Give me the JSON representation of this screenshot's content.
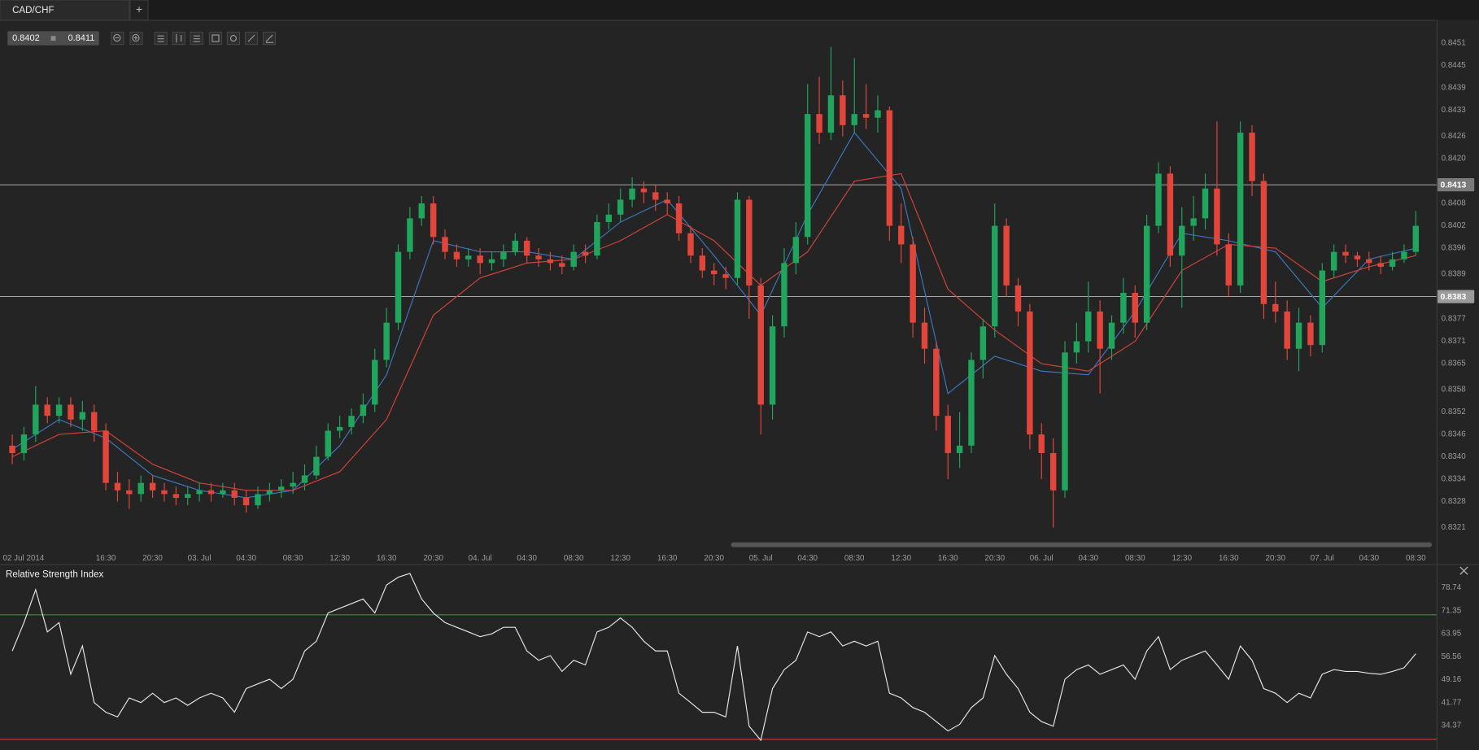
{
  "tab": {
    "title": "CAD/CHF",
    "add": "+"
  },
  "quote": {
    "bid": 0.8402,
    "ask": 0.8411
  },
  "chart_data": [
    {
      "type": "candlestick",
      "categories": [
        "02 Jul 2014",
        null,
        null,
        null,
        null,
        null,
        null,
        null,
        "16:30",
        null,
        null,
        null,
        "20:30",
        null,
        null,
        null,
        "03. Jul",
        null,
        null,
        null,
        "04:30",
        null,
        null,
        null,
        "08:30",
        null,
        null,
        null,
        "12:30",
        null,
        null,
        null,
        "16:30",
        null,
        null,
        null,
        "20:30",
        null,
        null,
        null,
        "04. Jul",
        null,
        null,
        null,
        "04:30",
        null,
        null,
        null,
        "08:30",
        null,
        null,
        null,
        "12:30",
        null,
        null,
        null,
        "16:30",
        null,
        null,
        null,
        "20:30",
        null,
        null,
        null,
        "05. Jul",
        null,
        null,
        null,
        "04:30",
        null,
        null,
        null,
        "08:30",
        null,
        null,
        null,
        "12:30",
        null,
        null,
        null,
        "16:30",
        null,
        null,
        null,
        "20:30",
        null,
        null,
        null,
        "06. Jul",
        null,
        null,
        null,
        "04:30",
        null,
        null,
        null,
        "08:30",
        null,
        null,
        null,
        "12:30",
        null,
        null,
        null,
        "16:30",
        null,
        null,
        null,
        "20:30",
        null,
        null,
        null,
        "07. Jul",
        null,
        null,
        null,
        "04:30",
        null,
        null,
        null,
        "08:30"
      ],
      "open": [
        0.8343,
        0.8341,
        0.8346,
        0.8354,
        0.8351,
        0.8354,
        0.835,
        0.8352,
        0.8347,
        0.8333,
        0.8331,
        0.833,
        0.8333,
        0.8331,
        0.833,
        0.8329,
        0.833,
        0.8331,
        0.833,
        0.8331,
        0.8329,
        0.8327,
        0.833,
        0.8331,
        0.8332,
        0.8333,
        0.8335,
        0.834,
        0.8347,
        0.8348,
        0.8351,
        0.8354,
        0.8366,
        0.8376,
        0.8395,
        0.8404,
        0.8408,
        0.8399,
        0.8395,
        0.8393,
        0.8394,
        0.8392,
        0.8393,
        0.8395,
        0.8398,
        0.8394,
        0.8393,
        0.8392,
        0.8391,
        0.8395,
        0.8394,
        0.8403,
        0.8405,
        0.8409,
        0.8412,
        0.8411,
        0.8409,
        0.8408,
        0.84,
        0.8394,
        0.839,
        0.8389,
        0.8388,
        0.8409,
        0.8386,
        0.8354,
        0.8375,
        0.8392,
        0.8399,
        0.8432,
        0.8427,
        0.8437,
        0.8429,
        0.8432,
        0.8431,
        0.8433,
        0.8402,
        0.8397,
        0.8376,
        0.8369,
        0.8351,
        0.8341,
        0.8343,
        0.8366,
        0.8375,
        0.8402,
        0.8386,
        0.8379,
        0.8346,
        0.8341,
        0.8331,
        0.8368,
        0.8371,
        0.8379,
        0.8369,
        0.8376,
        0.8384,
        0.8376,
        0.8402,
        0.8416,
        0.8394,
        0.8402,
        0.8404,
        0.8412,
        0.8397,
        0.8386,
        0.8427,
        0.8414,
        0.8381,
        0.8379,
        0.8369,
        0.8376,
        0.837,
        0.839,
        0.8395,
        0.8394,
        0.8393,
        0.8392,
        0.8391,
        0.8393,
        0.8395
      ],
      "high": [
        0.8346,
        0.8348,
        0.8359,
        0.8356,
        0.8356,
        0.8356,
        0.8355,
        0.8354,
        0.8349,
        0.8336,
        0.8334,
        0.8335,
        0.8335,
        0.8333,
        0.8332,
        0.8332,
        0.8333,
        0.8333,
        0.8333,
        0.8333,
        0.8331,
        0.8332,
        0.8333,
        0.8334,
        0.8336,
        0.8338,
        0.8343,
        0.8349,
        0.8351,
        0.8353,
        0.8357,
        0.8369,
        0.838,
        0.8397,
        0.8407,
        0.841,
        0.841,
        0.8401,
        0.8397,
        0.8396,
        0.8396,
        0.8395,
        0.8397,
        0.84,
        0.8399,
        0.8396,
        0.8395,
        0.8394,
        0.8397,
        0.8397,
        0.8405,
        0.8408,
        0.8412,
        0.8415,
        0.8414,
        0.8413,
        0.8411,
        0.841,
        0.8402,
        0.8396,
        0.8392,
        0.8391,
        0.8411,
        0.841,
        0.8388,
        0.8378,
        0.8396,
        0.8403,
        0.844,
        0.8442,
        0.845,
        0.8441,
        0.8447,
        0.844,
        0.8437,
        0.8434,
        0.8408,
        0.8399,
        0.838,
        0.8371,
        0.8354,
        0.8352,
        0.8368,
        0.8377,
        0.8408,
        0.8404,
        0.8388,
        0.8381,
        0.8349,
        0.8345,
        0.8371,
        0.8376,
        0.8387,
        0.8382,
        0.8378,
        0.8388,
        0.8386,
        0.8405,
        0.8419,
        0.8418,
        0.8407,
        0.841,
        0.8416,
        0.843,
        0.84,
        0.843,
        0.8429,
        0.8416,
        0.8387,
        0.8382,
        0.838,
        0.8378,
        0.8392,
        0.8397,
        0.8397,
        0.8395,
        0.8395,
        0.8394,
        0.8395,
        0.8397,
        0.8406
      ],
      "low": [
        0.8338,
        0.8339,
        0.8344,
        0.8349,
        0.8349,
        0.8348,
        0.8347,
        0.8344,
        0.8331,
        0.8328,
        0.8326,
        0.8328,
        0.8329,
        0.8328,
        0.8327,
        0.8327,
        0.8328,
        0.8328,
        0.8329,
        0.8327,
        0.8325,
        0.8326,
        0.8328,
        0.8329,
        0.833,
        0.8331,
        0.8334,
        0.8339,
        0.8345,
        0.8346,
        0.8349,
        0.8352,
        0.8364,
        0.8374,
        0.8393,
        0.8402,
        0.8397,
        0.8393,
        0.8391,
        0.8391,
        0.8389,
        0.839,
        0.8391,
        0.8394,
        0.8392,
        0.8391,
        0.839,
        0.8389,
        0.839,
        0.8392,
        0.8393,
        0.8401,
        0.8403,
        0.8407,
        0.8408,
        0.8406,
        0.8405,
        0.8398,
        0.8392,
        0.8388,
        0.8386,
        0.8385,
        0.8386,
        0.8377,
        0.8346,
        0.835,
        0.8372,
        0.8389,
        0.8397,
        0.8424,
        0.8425,
        0.8426,
        0.8427,
        0.8428,
        0.8427,
        0.8398,
        0.8392,
        0.8372,
        0.8365,
        0.8347,
        0.8334,
        0.8337,
        0.8341,
        0.8361,
        0.8372,
        0.8383,
        0.8375,
        0.8342,
        0.8334,
        0.8321,
        0.8329,
        0.8365,
        0.8368,
        0.8357,
        0.8366,
        0.8373,
        0.8372,
        0.8374,
        0.84,
        0.8391,
        0.838,
        0.8398,
        0.8401,
        0.8394,
        0.8383,
        0.8384,
        0.841,
        0.8377,
        0.8376,
        0.8366,
        0.8363,
        0.8367,
        0.8368,
        0.8388,
        0.8392,
        0.8391,
        0.839,
        0.8389,
        0.839,
        0.8392,
        0.8394
      ],
      "close": [
        0.8341,
        0.8346,
        0.8354,
        0.8351,
        0.8354,
        0.835,
        0.8352,
        0.8347,
        0.8333,
        0.8331,
        0.833,
        0.8333,
        0.8331,
        0.833,
        0.8329,
        0.833,
        0.8331,
        0.833,
        0.8331,
        0.8329,
        0.8327,
        0.833,
        0.8331,
        0.8332,
        0.8333,
        0.8335,
        0.834,
        0.8347,
        0.8348,
        0.8351,
        0.8354,
        0.8366,
        0.8376,
        0.8395,
        0.8404,
        0.8408,
        0.8399,
        0.8395,
        0.8393,
        0.8394,
        0.8392,
        0.8393,
        0.8395,
        0.8398,
        0.8394,
        0.8393,
        0.8392,
        0.8391,
        0.8395,
        0.8394,
        0.8403,
        0.8405,
        0.8409,
        0.8412,
        0.8411,
        0.8409,
        0.8408,
        0.84,
        0.8394,
        0.839,
        0.8389,
        0.8388,
        0.8409,
        0.8386,
        0.8354,
        0.8375,
        0.8392,
        0.8399,
        0.8432,
        0.8427,
        0.8437,
        0.8429,
        0.8432,
        0.8431,
        0.8433,
        0.8402,
        0.8397,
        0.8376,
        0.8369,
        0.8351,
        0.8341,
        0.8343,
        0.8366,
        0.8375,
        0.8402,
        0.8386,
        0.8379,
        0.8346,
        0.8341,
        0.8331,
        0.8368,
        0.8371,
        0.8379,
        0.8369,
        0.8376,
        0.8384,
        0.8376,
        0.8402,
        0.8416,
        0.8394,
        0.8402,
        0.8404,
        0.8412,
        0.8397,
        0.8386,
        0.8427,
        0.8414,
        0.8381,
        0.8379,
        0.8369,
        0.8376,
        0.837,
        0.839,
        0.8395,
        0.8394,
        0.8393,
        0.8392,
        0.8391,
        0.8393,
        0.8395,
        0.8402
      ],
      "up_color": "#1fa55c",
      "down_color": "#e2463b",
      "overlays": [
        {
          "color": "#3a78c0",
          "x": [
            0,
            4,
            8,
            12,
            16,
            20,
            24,
            28,
            32,
            36,
            40,
            44,
            48,
            52,
            56,
            60,
            64,
            68,
            72,
            76,
            80,
            84,
            88,
            92,
            96,
            100,
            104,
            108,
            112,
            116,
            120
          ],
          "values": [
            0.8342,
            0.835,
            0.8345,
            0.8335,
            0.8331,
            0.8329,
            0.8331,
            0.8343,
            0.8362,
            0.8398,
            0.8395,
            0.8395,
            0.8393,
            0.8403,
            0.8409,
            0.8394,
            0.8378,
            0.8405,
            0.8427,
            0.8412,
            0.8357,
            0.8367,
            0.8363,
            0.8362,
            0.8379,
            0.84,
            0.8398,
            0.8395,
            0.838,
            0.8393,
            0.8396
          ]
        },
        {
          "color": "#d2433a",
          "x": [
            0,
            4,
            8,
            12,
            16,
            20,
            24,
            28,
            32,
            36,
            40,
            44,
            48,
            52,
            56,
            60,
            64,
            68,
            72,
            76,
            80,
            84,
            88,
            92,
            96,
            100,
            104,
            108,
            112,
            116,
            120
          ],
          "values": [
            0.834,
            0.8346,
            0.8347,
            0.8338,
            0.8333,
            0.8331,
            0.8331,
            0.8336,
            0.835,
            0.8378,
            0.8388,
            0.8392,
            0.8393,
            0.8398,
            0.8405,
            0.8398,
            0.8386,
            0.8395,
            0.8414,
            0.8416,
            0.8385,
            0.8374,
            0.8365,
            0.8363,
            0.8371,
            0.839,
            0.8397,
            0.8396,
            0.8387,
            0.8391,
            0.8394
          ]
        }
      ],
      "hlines": [
        0.8413,
        0.8383
      ],
      "ylim": [
        0.8315,
        0.8457
      ],
      "yticks": [
        0.8451,
        0.8445,
        0.8439,
        0.8433,
        0.8426,
        {
          "value": 0.842,
          "label": "0.8420"
        },
        0.8408,
        0.8402,
        0.8396,
        0.8389,
        0.8377,
        0.8371,
        0.8365,
        0.8358,
        0.8352,
        0.8346,
        {
          "value": 0.834,
          "label": "0.8340"
        },
        0.8334,
        0.8328,
        0.8321
      ]
    },
    {
      "type": "line",
      "title": "Relative Strength Index",
      "color": "#e6e6e6",
      "values": [
        58.4,
        67.5,
        78.1,
        64.5,
        67.5,
        50.9,
        60.0,
        41.8,
        38.7,
        37.2,
        43.3,
        41.8,
        44.8,
        41.8,
        43.3,
        40.9,
        43.3,
        44.8,
        43.3,
        38.7,
        46.3,
        47.8,
        49.3,
        46.3,
        49.3,
        58.4,
        61.5,
        70.6,
        72.1,
        73.6,
        75.1,
        70.6,
        79.6,
        82.1,
        83.3,
        75.1,
        70.6,
        67.5,
        66.0,
        64.5,
        63.0,
        63.9,
        66.0,
        66.0,
        58.4,
        55.4,
        56.9,
        51.8,
        55.4,
        53.9,
        64.5,
        66.0,
        69.0,
        66.0,
        61.5,
        58.4,
        58.4,
        44.8,
        41.8,
        38.7,
        38.7,
        37.2,
        60.0,
        34.2,
        29.7,
        46.3,
        52.4,
        55.4,
        64.5,
        63.0,
        64.5,
        60.0,
        61.5,
        60.0,
        61.5,
        44.8,
        43.3,
        40.2,
        38.7,
        35.7,
        32.7,
        34.8,
        40.2,
        43.3,
        56.9,
        50.9,
        46.3,
        38.7,
        35.7,
        34.2,
        49.3,
        52.4,
        53.9,
        50.9,
        52.4,
        53.9,
        49.3,
        58.4,
        63.0,
        52.4,
        55.4,
        56.9,
        58.4,
        53.9,
        49.3,
        60.0,
        55.4,
        46.3,
        44.8,
        41.8,
        44.8,
        43.3,
        50.9,
        52.4,
        51.8,
        51.8,
        51.2,
        50.9,
        51.8,
        53.0,
        57.5
      ],
      "levels": [
        {
          "value": 70,
          "color": "#3f8f45"
        },
        {
          "value": 30,
          "color": "#c8392e"
        }
      ],
      "ylim": [
        26.6,
        86.3
      ],
      "yticks": [
        78.74,
        71.35,
        63.95,
        56.56,
        49.16,
        41.77,
        34.37
      ]
    }
  ]
}
